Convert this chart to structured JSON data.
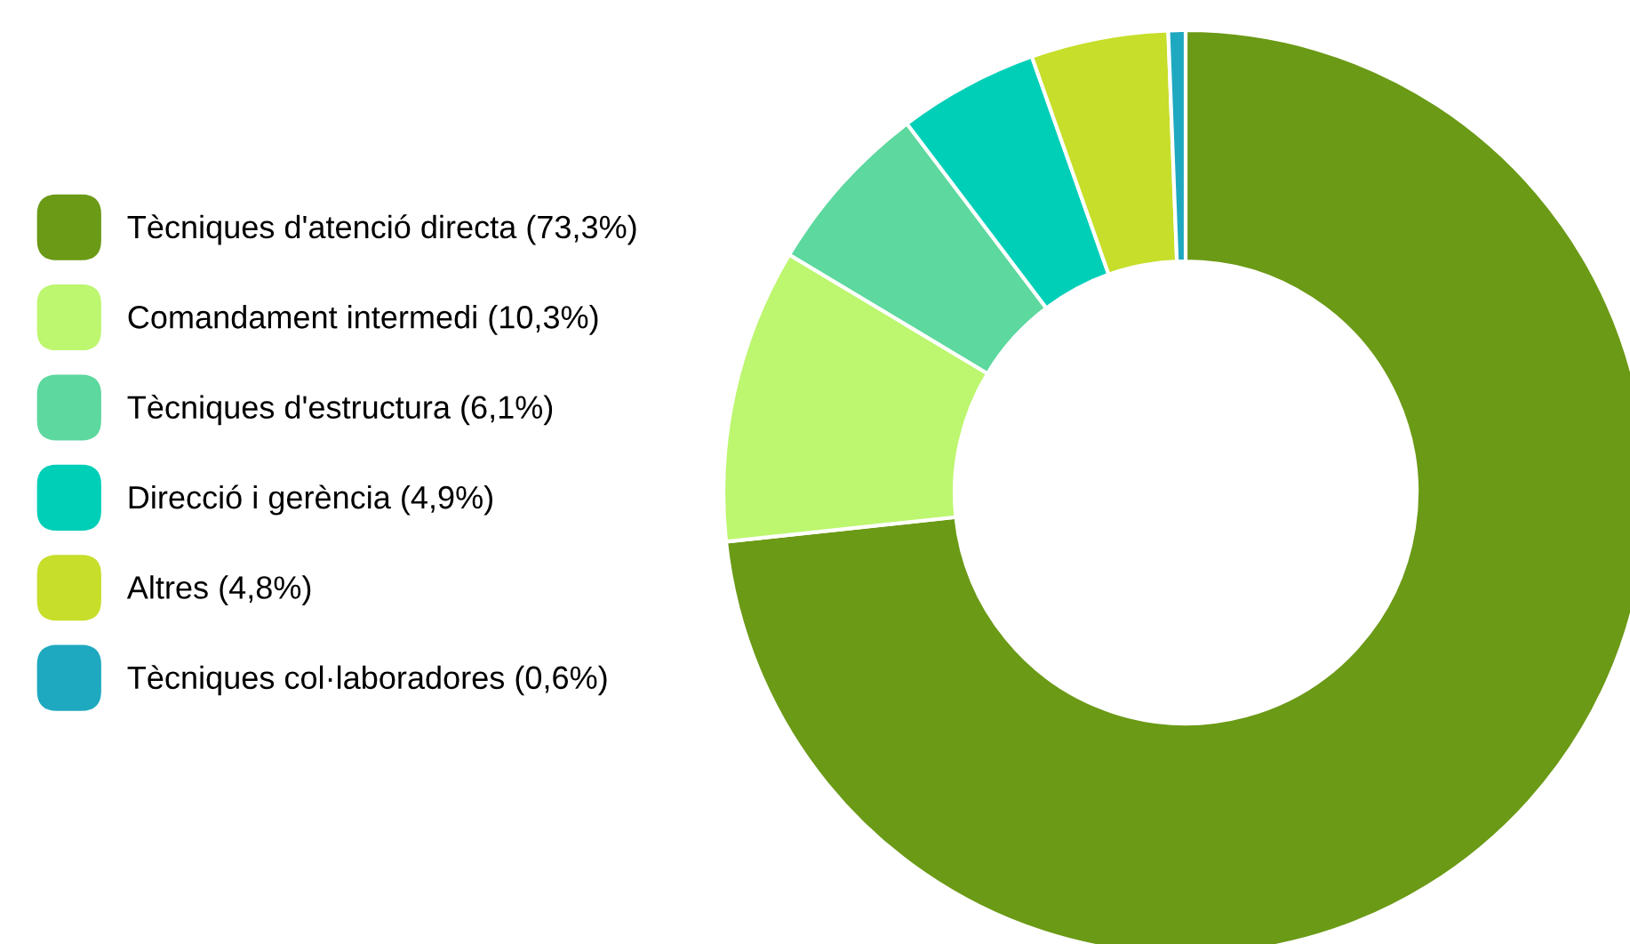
{
  "chart_data": {
    "type": "donut",
    "categories": [
      "Tècniques d'atenció directa (73,3%)",
      "Comandament intermedi (10,3%)",
      "Tècniques d'estructura (6,1%)",
      "Direcció i gerència (4,9%)",
      "Altres (4,8%)",
      "Tècniques col·laboradores (0,6%)"
    ],
    "values": [
      73.3,
      10.3,
      6.1,
      4.9,
      4.8,
      0.6
    ],
    "colors": [
      "#6b9a16",
      "#bdf66f",
      "#5dd89e",
      "#00cfb8",
      "#c7de2a",
      "#1fa9c0"
    ],
    "legend": "left"
  }
}
